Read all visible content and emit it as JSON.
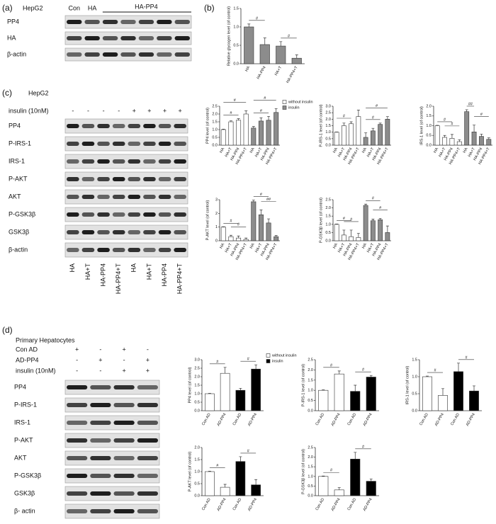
{
  "panels": {
    "a": {
      "label": "(a)",
      "cell": "HepG2",
      "lanes": [
        "Con",
        "HA",
        "HA-PP4"
      ],
      "rows": [
        "PP4",
        "HA",
        "β-actin"
      ]
    },
    "c": {
      "label": "(c)",
      "cell": "HepG2",
      "treatment": "insulin (10nM)",
      "signs": [
        "-",
        "-",
        "-",
        "-",
        "+",
        "+",
        "+",
        "+"
      ],
      "rows": [
        "PP4",
        "P-IRS-1",
        "IRS-1",
        "P-AKT",
        "AKT",
        "P-GSK3β",
        "GSK3β",
        "β-actin"
      ],
      "lanes": [
        "HA",
        "HA+T",
        "HA-PP4",
        "HA-PP4+T",
        "HA",
        "HA+T",
        "HA-PP4",
        "HA-PP4+T"
      ]
    },
    "d": {
      "label": "(d)",
      "cell": "Primary  Hepatocytes",
      "conditions": [
        {
          "name": "Con AD",
          "signs": [
            "+",
            "-",
            "+",
            "-"
          ]
        },
        {
          "name": "AD-PP4",
          "signs": [
            "-",
            "+",
            "-",
            "+"
          ]
        },
        {
          "name": "insulin (10nM)",
          "signs": [
            "-",
            "-",
            "+",
            "+"
          ]
        }
      ],
      "rows": [
        "PP4",
        "P-IRS-1",
        "IRS-1",
        "P-AKT",
        "AKT",
        "P-GSK3β",
        "GSK3β",
        "β- actin"
      ]
    }
  },
  "chart_data": [
    {
      "type": "bar",
      "panel_label": "(b)",
      "ylabel": "Relative glycogen level (of control)",
      "categories": [
        "HA",
        "HA-PP4",
        "HA+T",
        "HA-PP4+T"
      ],
      "series": [
        {
          "color": "#8c8c8c",
          "values": [
            1.0,
            0.52,
            0.48,
            0.15
          ],
          "errors": [
            0.08,
            0.18,
            0.12,
            0.09
          ]
        }
      ],
      "ylim": [
        0,
        1.5
      ],
      "yticks": [
        {
          "value": 0,
          "label": "0.0"
        },
        0.5,
        {
          "value": 1,
          "label": "1.0"
        },
        1.5
      ],
      "brackets": [
        {
          "from": 0,
          "to": 1,
          "label": "#"
        },
        {
          "from": 2,
          "to": 3,
          "label": "#"
        }
      ]
    },
    {
      "type": "bar",
      "ylabel": "PP4 level (of control)",
      "categories": [
        "HA",
        "HA+T",
        "HA-PP4",
        "HA-PP4+T",
        "HA",
        "HA+T",
        "HA-PP4",
        "HA-PP4+T"
      ],
      "series": [
        {
          "name": "without insulin",
          "color": "#ffffff",
          "values": [
            1.0,
            1.5,
            1.6,
            2.0,
            null,
            null,
            null,
            null
          ],
          "errors": [
            0.03,
            0.06,
            0.1,
            0.2,
            null,
            null,
            null,
            null
          ]
        },
        {
          "name": "insulin",
          "color": "#8c8c8c",
          "values": [
            null,
            null,
            null,
            null,
            1.1,
            1.55,
            1.6,
            2.1
          ],
          "errors": [
            null,
            null,
            null,
            null,
            0.1,
            0.2,
            0.25,
            0.25
          ]
        }
      ],
      "legend": "upper right",
      "ylim": [
        0,
        2.5
      ],
      "yticks": [
        {
          "value": 0,
          "label": "0.0"
        },
        0.5,
        {
          "value": 1,
          "label": "1.0"
        },
        1.5,
        {
          "value": 2,
          "label": "2.0"
        },
        2.5
      ],
      "brackets": [
        {
          "from": 0,
          "to": 2,
          "label": "#"
        },
        {
          "from": 0,
          "to": 3,
          "label": "#"
        },
        {
          "from": 4,
          "to": 6,
          "label": "#"
        },
        {
          "from": 4,
          "to": 7,
          "label": "#"
        }
      ]
    },
    {
      "type": "bar",
      "ylabel": "P-IRS-1 level (of control)",
      "categories": [
        "HA",
        "HA+T",
        "HA-PP4",
        "HA-PP4+T",
        "HA",
        "HA+T",
        "HA-PP4",
        "HA-PP4+T"
      ],
      "series": [
        {
          "color": "#ffffff",
          "values": [
            1.0,
            1.5,
            1.65,
            2.2,
            null,
            null,
            null,
            null
          ],
          "errors": [
            0.02,
            0.2,
            0.15,
            0.5,
            null,
            null,
            null,
            null
          ]
        },
        {
          "color": "#8c8c8c",
          "values": [
            null,
            null,
            null,
            null,
            0.6,
            1.1,
            1.6,
            2.0
          ],
          "errors": [
            null,
            null,
            null,
            null,
            0.35,
            0.2,
            0.1,
            0.2
          ]
        }
      ],
      "ylim": [
        0,
        3
      ],
      "yticks": [
        {
          "value": 0,
          "label": "0.0"
        },
        0.5,
        {
          "value": 1,
          "label": "1.0"
        },
        1.5,
        {
          "value": 2,
          "label": "2.0"
        },
        2.5,
        {
          "value": 3,
          "label": "3.0"
        }
      ],
      "brackets": [
        {
          "from": 0,
          "to": 2,
          "label": "#"
        },
        {
          "from": 4,
          "to": 6,
          "label": "#"
        },
        {
          "from": 4,
          "to": 7,
          "label": "#"
        }
      ]
    },
    {
      "type": "bar",
      "ylabel": "IRS-1 level (of control)",
      "categories": [
        "HA",
        "HA+T",
        "HA-PP4",
        "HA-PP4+T",
        "HA",
        "HA+T",
        "HA-PP4",
        "HA-PP4+T"
      ],
      "series": [
        {
          "color": "#ffffff",
          "values": [
            1.0,
            0.4,
            0.35,
            0.18,
            null,
            null,
            null,
            null
          ],
          "errors": [
            0.02,
            0.1,
            0.2,
            0.1,
            null,
            null,
            null,
            null
          ]
        },
        {
          "color": "#8c8c8c",
          "values": [
            null,
            null,
            null,
            null,
            1.72,
            0.68,
            0.45,
            0.3
          ],
          "errors": [
            null,
            null,
            null,
            null,
            0.1,
            0.35,
            0.12,
            0.08
          ]
        }
      ],
      "ylim": [
        0,
        2
      ],
      "yticks": [
        {
          "value": 0,
          "label": "0.0"
        },
        0.5,
        {
          "value": 1,
          "label": "1.0"
        },
        1.5,
        {
          "value": 2,
          "label": "2.0"
        }
      ],
      "brackets": [
        {
          "from": 0,
          "to": 2,
          "label": "#"
        },
        {
          "from": 1,
          "to": 3,
          "label": "#"
        },
        {
          "from": 4,
          "to": 5,
          "label": "##"
        },
        {
          "from": 5,
          "to": 7,
          "label": "#"
        }
      ]
    },
    {
      "type": "bar",
      "ylabel": "P-AKT level (of control)",
      "categories": [
        "HA",
        "HA+T",
        "HA-PP4",
        "HA-PP4+T",
        "HA",
        "HA+T",
        "HA-PP4",
        "HA-PP4+T"
      ],
      "series": [
        {
          "color": "#ffffff",
          "values": [
            1.0,
            0.3,
            0.2,
            0.1,
            null,
            null,
            null,
            null
          ],
          "errors": [
            0.02,
            0.1,
            0.15,
            0.1,
            null,
            null,
            null,
            null
          ]
        },
        {
          "color": "#8c8c8c",
          "values": [
            null,
            null,
            null,
            null,
            2.85,
            1.9,
            1.3,
            0.3
          ],
          "errors": [
            null,
            null,
            null,
            null,
            0.12,
            0.35,
            0.3,
            0.08
          ]
        }
      ],
      "ylim": [
        0,
        3
      ],
      "yticks": [
        0,
        1,
        2,
        3
      ],
      "brackets": [
        {
          "from": 0,
          "to": 2,
          "label": "#"
        },
        {
          "from": 1,
          "to": 3,
          "label": "#"
        },
        {
          "from": 4,
          "to": 6,
          "label": "#"
        },
        {
          "from": 5,
          "to": 7,
          "label": "##"
        }
      ]
    },
    {
      "type": "bar",
      "ylabel": "P-GSK3β level (of control)",
      "categories": [
        "HA",
        "HA+T",
        "HA-PP4",
        "HA-PP4+T",
        "HA",
        "HA+T",
        "HA-PP4",
        "HA-PP4+T"
      ],
      "series": [
        {
          "color": "#ffffff",
          "values": [
            1.0,
            0.35,
            0.25,
            0.2,
            null,
            null,
            null,
            null
          ],
          "errors": [
            0.02,
            0.3,
            0.4,
            0.25,
            null,
            null,
            null,
            null
          ]
        },
        {
          "color": "#8c8c8c",
          "values": [
            null,
            null,
            null,
            null,
            2.15,
            1.22,
            1.28,
            0.5
          ],
          "errors": [
            null,
            null,
            null,
            null,
            0.08,
            0.1,
            0.08,
            0.4
          ]
        }
      ],
      "ylim": [
        0,
        2.5
      ],
      "yticks": [
        {
          "value": 0,
          "label": "0.0"
        },
        0.5,
        {
          "value": 1,
          "label": "1.0"
        },
        1.5,
        {
          "value": 2,
          "label": "2.0"
        },
        2.5
      ],
      "brackets": [
        {
          "from": 0,
          "to": 2,
          "label": "#"
        },
        {
          "from": 1,
          "to": 3,
          "label": "#"
        },
        {
          "from": 4,
          "to": 6,
          "label": "#"
        },
        {
          "from": 5,
          "to": 7,
          "label": "#"
        }
      ]
    },
    {
      "type": "bar",
      "ylabel": "PP4 level (of control)",
      "categories": [
        "Con AD",
        "AD-PP4",
        "Con AD",
        "AD-PP4"
      ],
      "series": [
        {
          "name": "without insulin",
          "color": "#ffffff",
          "values": [
            1.0,
            2.2,
            null,
            null
          ],
          "errors": [
            0.02,
            0.35,
            null,
            null
          ]
        },
        {
          "name": "insulin",
          "color": "#000000",
          "values": [
            null,
            null,
            1.2,
            2.45
          ],
          "errors": [
            null,
            null,
            0.12,
            0.25
          ]
        }
      ],
      "legend": "upper right",
      "ylim": [
        0,
        3
      ],
      "yticks": [
        {
          "value": 0,
          "label": "0.0"
        },
        0.5,
        {
          "value": 1,
          "label": "1.0"
        },
        1.5,
        {
          "value": 2,
          "label": "2.0"
        },
        2.5,
        {
          "value": 3,
          "label": "3.0"
        }
      ],
      "brackets": [
        {
          "from": 0,
          "to": 1,
          "label": "#"
        },
        {
          "from": 2,
          "to": 3,
          "label": "#"
        }
      ]
    },
    {
      "type": "bar",
      "ylabel": "P-IRS-1 level (of control)",
      "categories": [
        "Con AD",
        "AD-PP4",
        "Con AD",
        "AD-PP4"
      ],
      "series": [
        {
          "color": "#ffffff",
          "values": [
            1.0,
            1.8,
            null,
            null
          ],
          "errors": [
            0.02,
            0.15,
            null,
            null
          ]
        },
        {
          "color": "#000000",
          "values": [
            null,
            null,
            0.95,
            1.65
          ],
          "errors": [
            null,
            null,
            0.3,
            0.08
          ]
        }
      ],
      "ylim": [
        0,
        2.5
      ],
      "yticks": [
        {
          "value": 0,
          "label": "0.0"
        },
        0.5,
        {
          "value": 1,
          "label": "1.0"
        },
        1.5,
        {
          "value": 2,
          "label": "2.0"
        },
        2.5
      ],
      "brackets": [
        {
          "from": 0,
          "to": 1,
          "label": "#"
        },
        {
          "from": 2,
          "to": 3,
          "label": "#"
        }
      ]
    },
    {
      "type": "bar",
      "ylabel": "IRS-1 level (of control)",
      "categories": [
        "Con AD",
        "AD-PP4",
        "Con AD",
        "AD-PP4"
      ],
      "series": [
        {
          "color": "#ffffff",
          "values": [
            1.0,
            0.45,
            null,
            null
          ],
          "errors": [
            0.02,
            0.2,
            null,
            null
          ]
        },
        {
          "color": "#000000",
          "values": [
            null,
            null,
            1.15,
            0.58
          ],
          "errors": [
            null,
            null,
            0.25,
            0.15
          ]
        }
      ],
      "ylim": [
        0,
        1.5
      ],
      "yticks": [
        {
          "value": 0,
          "label": "0.0"
        },
        0.5,
        {
          "value": 1,
          "label": "1.0"
        },
        1.5
      ],
      "brackets": [
        {
          "from": 0,
          "to": 1,
          "label": "#"
        },
        {
          "from": 2,
          "to": 3,
          "label": "#"
        }
      ]
    },
    {
      "type": "bar",
      "ylabel": "P-AKT level (of control)",
      "categories": [
        "Con AD",
        "AD-PP4",
        "Con AD",
        "AD-PP4"
      ],
      "series": [
        {
          "color": "#ffffff",
          "values": [
            1.0,
            0.35,
            null,
            null
          ],
          "errors": [
            0.02,
            0.12,
            null,
            null
          ]
        },
        {
          "color": "#000000",
          "values": [
            null,
            null,
            1.42,
            0.45
          ],
          "errors": [
            null,
            null,
            0.2,
            0.22
          ]
        }
      ],
      "ylim": [
        0,
        2
      ],
      "yticks": [
        {
          "value": 0,
          "label": "0.0"
        },
        0.5,
        {
          "value": 1,
          "label": "1.0"
        },
        1.5,
        {
          "value": 2,
          "label": "2.0"
        }
      ],
      "brackets": [
        {
          "from": 0,
          "to": 1,
          "label": "#"
        },
        {
          "from": 2,
          "to": 3,
          "label": "#"
        }
      ]
    },
    {
      "type": "bar",
      "ylabel": "P-GSK3β level (of control)",
      "categories": [
        "Con AD",
        "AD-PP4",
        "Con AD",
        "AD-PP4"
      ],
      "series": [
        {
          "color": "#ffffff",
          "values": [
            1.0,
            0.3,
            null,
            null
          ],
          "errors": [
            0.02,
            0.12,
            null,
            null
          ]
        },
        {
          "color": "#000000",
          "values": [
            null,
            null,
            1.9,
            0.75
          ],
          "errors": [
            null,
            null,
            0.35,
            0.12
          ]
        }
      ],
      "ylim": [
        0,
        2.5
      ],
      "yticks": [
        {
          "value": 0,
          "label": "0.0"
        },
        0.5,
        {
          "value": 1,
          "label": "1.0"
        },
        1.5,
        {
          "value": 2,
          "label": "2.0"
        },
        2.5
      ],
      "brackets": [
        {
          "from": 0,
          "to": 1,
          "label": "#"
        },
        {
          "from": 2,
          "to": 3,
          "label": "#"
        }
      ]
    }
  ]
}
